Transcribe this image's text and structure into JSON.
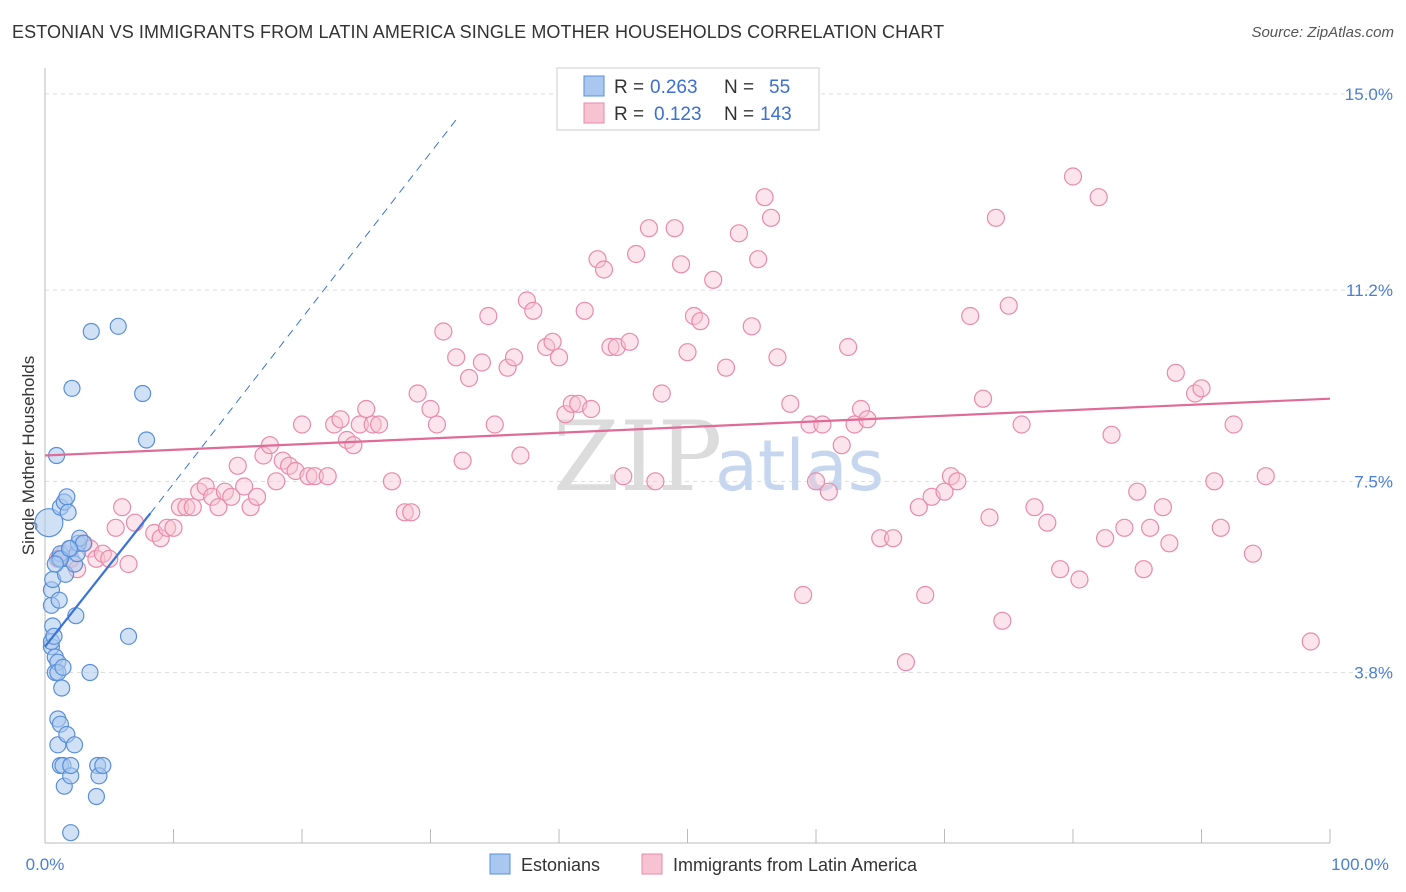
{
  "title": "ESTONIAN VS IMMIGRANTS FROM LATIN AMERICA SINGLE MOTHER HOUSEHOLDS CORRELATION CHART",
  "source": "Source: ZipAtlas.com",
  "watermark": {
    "part1": "ZIP",
    "part2": "atlas"
  },
  "colors": {
    "blue_fill": "#aac8ef",
    "blue_stroke": "#5a8fd8",
    "blue_line": "#3b74d4",
    "pink_fill": "#f7c3d3",
    "pink_stroke": "#e98aaa",
    "pink_line": "#e06b96",
    "grid": "#dddddd",
    "tick_label": "#4a7fd4"
  },
  "legend": {
    "rows": [
      {
        "r_label": "R =",
        "r_value": "0.263",
        "n_label": "N =",
        "n_value": "55"
      },
      {
        "r_label": "R =",
        "r_value": "0.123",
        "n_label": "N =",
        "n_value": "143"
      }
    ]
  },
  "chart_data": {
    "type": "scatter",
    "title": "ESTONIAN VS IMMIGRANTS FROM LATIN AMERICA SINGLE MOTHER HOUSEHOLDS CORRELATION CHART",
    "xlabel": "",
    "ylabel": "Single Mother Households",
    "xlim": [
      0,
      100
    ],
    "ylim": [
      0.5,
      15.5
    ],
    "x_tick_labels": [
      "0.0%",
      "100.0%"
    ],
    "y_ticks": [
      3.8,
      7.5,
      11.2,
      15.0
    ],
    "y_tick_labels": [
      "3.8%",
      "7.5%",
      "11.2%",
      "15.0%"
    ],
    "legend_position": "top-center",
    "series": [
      {
        "name": "Estonians",
        "r": 0.263,
        "n": 55,
        "trend": {
          "x0": 0.0,
          "y0": 4.3,
          "x1": 8.2,
          "y1": 6.88,
          "dashed_to_x": 32,
          "dashed_to_y": 14.5
        },
        "points": [
          [
            0.3,
            6.7
          ],
          [
            0.5,
            4.3
          ],
          [
            0.5,
            4.4
          ],
          [
            0.5,
            5.1
          ],
          [
            0.5,
            5.4
          ],
          [
            0.6,
            4.7
          ],
          [
            0.6,
            5.6
          ],
          [
            0.7,
            4.5
          ],
          [
            0.8,
            4.1
          ],
          [
            0.8,
            3.8
          ],
          [
            0.9,
            8.0
          ],
          [
            1.0,
            4.0
          ],
          [
            1.0,
            3.8
          ],
          [
            1.0,
            2.9
          ],
          [
            1.0,
            2.4
          ],
          [
            1.1,
            5.2
          ],
          [
            1.1,
            6.0
          ],
          [
            1.2,
            7.0
          ],
          [
            1.2,
            6.1
          ],
          [
            1.2,
            2.8
          ],
          [
            1.2,
            2.0
          ],
          [
            1.3,
            3.5
          ],
          [
            1.4,
            3.9
          ],
          [
            1.4,
            2.0
          ],
          [
            1.5,
            1.6
          ],
          [
            1.5,
            7.1
          ],
          [
            1.6,
            5.7
          ],
          [
            1.7,
            7.2
          ],
          [
            1.7,
            2.6
          ],
          [
            1.8,
            6.9
          ],
          [
            2.0,
            1.8
          ],
          [
            2.0,
            2.0
          ],
          [
            2.0,
            6.2
          ],
          [
            2.0,
            0.7
          ],
          [
            2.1,
            9.3
          ],
          [
            2.3,
            5.9
          ],
          [
            2.3,
            2.4
          ],
          [
            2.4,
            4.9
          ],
          [
            2.5,
            6.1
          ],
          [
            2.6,
            6.3
          ],
          [
            2.7,
            6.4
          ],
          [
            3.0,
            6.3
          ],
          [
            3.5,
            3.8
          ],
          [
            3.6,
            10.4
          ],
          [
            4.0,
            1.4
          ],
          [
            4.1,
            2.0
          ],
          [
            4.2,
            1.8
          ],
          [
            4.5,
            2.0
          ],
          [
            5.7,
            10.5
          ],
          [
            6.5,
            4.5
          ],
          [
            7.6,
            9.2
          ],
          [
            7.9,
            8.3
          ],
          [
            1.2,
            6.0
          ],
          [
            0.8,
            5.9
          ],
          [
            1.9,
            6.2
          ]
        ]
      },
      {
        "name": "Immigrants from Latin America",
        "r": 0.123,
        "n": 143,
        "trend": {
          "x0": 0.0,
          "y0": 8.0,
          "x1": 100.0,
          "y1": 9.1
        },
        "points": [
          [
            1.0,
            6.0
          ],
          [
            1.5,
            6.1
          ],
          [
            2.0,
            6.0
          ],
          [
            2.5,
            5.8
          ],
          [
            3.0,
            6.3
          ],
          [
            3.5,
            6.2
          ],
          [
            4.0,
            6.0
          ],
          [
            4.5,
            6.1
          ],
          [
            5.0,
            6.0
          ],
          [
            5.5,
            6.6
          ],
          [
            6.0,
            7.0
          ],
          [
            6.5,
            5.9
          ],
          [
            7.0,
            6.7
          ],
          [
            8.5,
            6.5
          ],
          [
            9.0,
            6.4
          ],
          [
            9.5,
            6.6
          ],
          [
            10.0,
            6.6
          ],
          [
            10.5,
            7.0
          ],
          [
            11.0,
            7.0
          ],
          [
            11.5,
            7.0
          ],
          [
            12.0,
            7.3
          ],
          [
            12.5,
            7.4
          ],
          [
            13.0,
            7.2
          ],
          [
            13.5,
            7.0
          ],
          [
            14.0,
            7.3
          ],
          [
            14.5,
            7.2
          ],
          [
            15.0,
            7.8
          ],
          [
            15.5,
            7.4
          ],
          [
            16.0,
            7.0
          ],
          [
            16.5,
            7.2
          ],
          [
            17.0,
            8.0
          ],
          [
            17.5,
            8.2
          ],
          [
            18.0,
            7.5
          ],
          [
            18.5,
            7.9
          ],
          [
            19.0,
            7.8
          ],
          [
            19.5,
            7.7
          ],
          [
            20.0,
            8.6
          ],
          [
            20.5,
            7.6
          ],
          [
            21.0,
            7.6
          ],
          [
            22.0,
            7.6
          ],
          [
            22.5,
            8.6
          ],
          [
            23.0,
            8.7
          ],
          [
            23.5,
            8.3
          ],
          [
            24.0,
            8.2
          ],
          [
            24.5,
            8.6
          ],
          [
            25.0,
            8.9
          ],
          [
            25.5,
            8.6
          ],
          [
            26.0,
            8.6
          ],
          [
            27.0,
            7.5
          ],
          [
            28.0,
            6.9
          ],
          [
            28.5,
            6.9
          ],
          [
            29.0,
            9.2
          ],
          [
            30.0,
            8.9
          ],
          [
            30.5,
            8.6
          ],
          [
            31.0,
            10.4
          ],
          [
            32.0,
            9.9
          ],
          [
            32.5,
            7.9
          ],
          [
            33.0,
            9.5
          ],
          [
            34.0,
            9.8
          ],
          [
            34.5,
            10.7
          ],
          [
            35.0,
            8.6
          ],
          [
            36.0,
            9.7
          ],
          [
            36.5,
            9.9
          ],
          [
            37.0,
            8.0
          ],
          [
            37.5,
            11.0
          ],
          [
            38.0,
            10.8
          ],
          [
            39.0,
            10.1
          ],
          [
            39.5,
            10.2
          ],
          [
            40.0,
            9.9
          ],
          [
            40.5,
            8.8
          ],
          [
            41.0,
            9.0
          ],
          [
            41.5,
            9.0
          ],
          [
            42.0,
            10.8
          ],
          [
            42.5,
            8.9
          ],
          [
            43.0,
            11.8
          ],
          [
            43.5,
            11.6
          ],
          [
            44.0,
            10.1
          ],
          [
            44.5,
            10.1
          ],
          [
            45.0,
            7.6
          ],
          [
            45.5,
            10.2
          ],
          [
            46.0,
            11.9
          ],
          [
            47.0,
            12.4
          ],
          [
            47.5,
            7.5
          ],
          [
            48.0,
            9.2
          ],
          [
            49.0,
            12.4
          ],
          [
            49.5,
            11.7
          ],
          [
            50.0,
            10.0
          ],
          [
            50.5,
            10.7
          ],
          [
            51.0,
            10.6
          ],
          [
            52.0,
            11.4
          ],
          [
            53.0,
            9.7
          ],
          [
            54.0,
            12.3
          ],
          [
            55.0,
            10.5
          ],
          [
            55.5,
            11.8
          ],
          [
            56.0,
            13.0
          ],
          [
            56.5,
            12.6
          ],
          [
            57.0,
            9.9
          ],
          [
            58.0,
            9.0
          ],
          [
            59.0,
            5.3
          ],
          [
            59.5,
            8.6
          ],
          [
            60.0,
            7.5
          ],
          [
            60.5,
            8.6
          ],
          [
            61.0,
            7.3
          ],
          [
            62.0,
            8.2
          ],
          [
            62.5,
            10.1
          ],
          [
            63.0,
            8.6
          ],
          [
            63.5,
            8.9
          ],
          [
            64.0,
            8.7
          ],
          [
            65.0,
            6.4
          ],
          [
            66.0,
            6.4
          ],
          [
            67.0,
            4.0
          ],
          [
            68.0,
            7.0
          ],
          [
            68.5,
            5.3
          ],
          [
            69.0,
            7.2
          ],
          [
            70.0,
            7.3
          ],
          [
            70.5,
            7.6
          ],
          [
            71.0,
            7.5
          ],
          [
            72.0,
            10.7
          ],
          [
            73.0,
            9.1
          ],
          [
            73.5,
            6.8
          ],
          [
            74.0,
            12.6
          ],
          [
            74.5,
            4.8
          ],
          [
            75.0,
            10.9
          ],
          [
            76.0,
            8.6
          ],
          [
            77.0,
            7.0
          ],
          [
            78.0,
            6.7
          ],
          [
            79.0,
            5.8
          ],
          [
            80.0,
            13.4
          ],
          [
            80.5,
            5.6
          ],
          [
            82.0,
            13.0
          ],
          [
            82.5,
            6.4
          ],
          [
            83.0,
            8.4
          ],
          [
            84.0,
            6.6
          ],
          [
            85.0,
            7.3
          ],
          [
            85.5,
            5.8
          ],
          [
            86.0,
            6.6
          ],
          [
            87.0,
            7.0
          ],
          [
            87.5,
            6.3
          ],
          [
            88.0,
            9.6
          ],
          [
            89.5,
            9.2
          ],
          [
            90.0,
            9.3
          ],
          [
            91.0,
            7.5
          ],
          [
            91.5,
            6.6
          ],
          [
            92.5,
            8.6
          ],
          [
            94.0,
            6.1
          ],
          [
            95.0,
            7.6
          ],
          [
            98.5,
            4.4
          ]
        ]
      }
    ]
  },
  "bottom_legend": {
    "items": [
      {
        "label": "Estonians"
      },
      {
        "label": "Immigrants from Latin America"
      }
    ]
  }
}
